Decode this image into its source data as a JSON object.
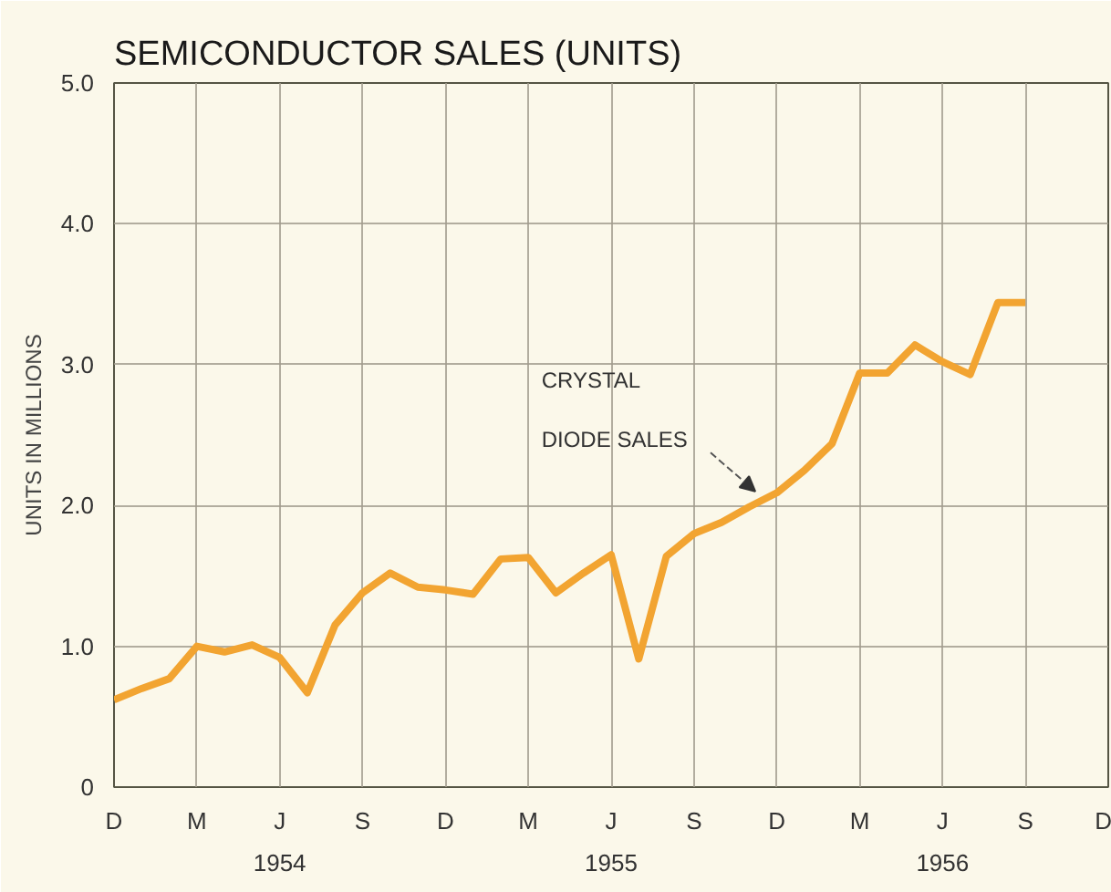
{
  "chart_data": {
    "type": "line",
    "title": "SEMICONDUCTOR SALES (UNITS)",
    "ylabel": "UNITS IN MILLIONS",
    "categories": [
      "D",
      null,
      null,
      "M",
      null,
      null,
      "J",
      null,
      null,
      "S",
      null,
      null,
      "D",
      null,
      null,
      "M",
      null,
      null,
      "J",
      null,
      null,
      "S",
      null,
      null,
      "D",
      null,
      null,
      "M",
      null,
      null,
      "J",
      null,
      null,
      "S",
      null,
      null,
      "D"
    ],
    "series": [
      {
        "color": "#f2a431",
        "values": [
          0.62,
          0.7,
          0.77,
          1.0,
          0.96,
          1.01,
          0.92,
          0.67,
          1.15,
          1.38,
          1.52,
          1.42,
          1.4,
          1.37,
          1.62,
          1.63,
          1.38,
          1.52,
          1.65,
          0.91,
          1.64,
          1.8,
          1.88,
          1.99,
          2.09,
          2.25,
          2.44,
          2.94,
          2.94,
          3.14,
          3.02,
          2.93,
          3.44,
          3.44,
          null,
          null,
          null
        ]
      }
    ],
    "ylim": [
      0,
      5
    ],
    "yticks": [
      0,
      {
        "value": 1,
        "label": "1.0"
      },
      {
        "value": 2,
        "label": "2.0"
      },
      {
        "value": 3,
        "label": "3.0"
      },
      {
        "value": 4,
        "label": "4.0"
      },
      {
        "value": 5,
        "label": "5.0"
      }
    ],
    "grid": true,
    "marker": "none",
    "line_style": "solid",
    "annotations": [
      "CRYSTAL\nDIODE SALES",
      "1954",
      "1955",
      "1956"
    ]
  }
}
